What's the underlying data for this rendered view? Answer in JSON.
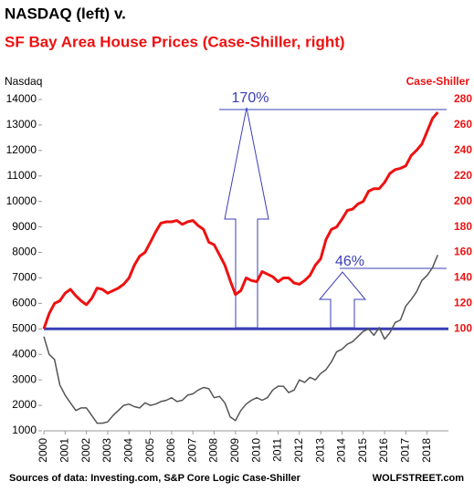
{
  "chart_data": {
    "type": "line",
    "title": "NASDAQ (left) v.",
    "subtitle": "SF Bay Area House Prices (Case-Shiller, right)",
    "y_label": "Nasdaq",
    "y2_label": "Case-Shiller",
    "annotations": [
      "170%",
      "46%"
    ],
    "source": "Sources of data: Investing.com, S&P Core Logic Case-Shiller",
    "brand": "WOLFSTREET.com",
    "xlim": [
      2000,
      2019
    ],
    "xticks": [
      2000,
      2001,
      2002,
      2003,
      2004,
      2005,
      2006,
      2007,
      2008,
      2009,
      2010,
      2011,
      2012,
      2013,
      2014,
      2015,
      2016,
      2017,
      2018
    ],
    "ylim": [
      1000,
      14000
    ],
    "yticks": [
      1000,
      2000,
      3000,
      4000,
      5000,
      6000,
      7000,
      8000,
      9000,
      10000,
      11000,
      12000,
      13000,
      14000
    ],
    "y2lim": [
      20,
      280
    ],
    "y2ticks": [
      100,
      120,
      140,
      160,
      180,
      200,
      220,
      240,
      260,
      280
    ],
    "hline": 5000,
    "hline_color": "#3a3fb5",
    "x": [
      2000,
      2000.25,
      2000.5,
      2000.75,
      2001,
      2001.25,
      2001.5,
      2001.75,
      2002,
      2002.25,
      2002.5,
      2002.75,
      2003,
      2003.25,
      2003.5,
      2003.75,
      2004,
      2004.25,
      2004.5,
      2004.75,
      2005,
      2005.25,
      2005.5,
      2005.75,
      2006,
      2006.25,
      2006.5,
      2006.75,
      2007,
      2007.25,
      2007.5,
      2007.75,
      2008,
      2008.25,
      2008.5,
      2008.75,
      2009,
      2009.25,
      2009.5,
      2009.75,
      2010,
      2010.25,
      2010.5,
      2010.75,
      2011,
      2011.25,
      2011.5,
      2011.75,
      2012,
      2012.25,
      2012.5,
      2012.75,
      2013,
      2013.25,
      2013.5,
      2013.75,
      2014,
      2014.25,
      2014.5,
      2014.75,
      2015,
      2015.25,
      2015.5,
      2015.75,
      2016,
      2016.25,
      2016.5,
      2016.75,
      2017,
      2017.25,
      2017.5,
      2017.75,
      2018,
      2018.25,
      2018.5
    ],
    "series": [
      {
        "name": "Nasdaq",
        "color": "#555555",
        "axis": "y",
        "values": [
          4700,
          4000,
          3800,
          2800,
          2400,
          2100,
          1800,
          1900,
          1900,
          1600,
          1300,
          1300,
          1350,
          1600,
          1800,
          2000,
          2050,
          1950,
          1900,
          2100,
          2000,
          2050,
          2150,
          2200,
          2300,
          2150,
          2200,
          2400,
          2450,
          2600,
          2700,
          2650,
          2300,
          2350,
          2100,
          1550,
          1400,
          1800,
          2050,
          2200,
          2300,
          2200,
          2300,
          2600,
          2750,
          2750,
          2500,
          2600,
          3000,
          2900,
          3100,
          3000,
          3250,
          3400,
          3700,
          4100,
          4200,
          4400,
          4500,
          4700,
          4900,
          5000,
          4750,
          5050,
          4600,
          4850,
          5250,
          5350,
          5900,
          6150,
          6450,
          6900,
          7100,
          7400,
          7900
        ]
      },
      {
        "name": "Case-Shiller",
        "color": "#ee1111",
        "axis": "y2",
        "values": [
          100,
          112,
          120,
          122,
          128,
          131,
          126,
          122,
          119,
          124,
          132,
          131,
          128,
          130,
          132,
          135,
          140,
          150,
          157,
          160,
          168,
          176,
          183,
          184,
          184,
          185,
          182,
          184,
          185,
          181,
          178,
          168,
          166,
          158,
          150,
          138,
          127,
          130,
          140,
          138,
          137,
          145,
          143,
          141,
          137,
          140,
          140,
          136,
          135,
          138,
          142,
          150,
          155,
          170,
          178,
          180,
          186,
          193,
          194,
          198,
          200,
          208,
          210,
          210,
          215,
          222,
          225,
          226,
          228,
          236,
          240,
          245,
          255,
          265,
          270
        ]
      }
    ]
  }
}
